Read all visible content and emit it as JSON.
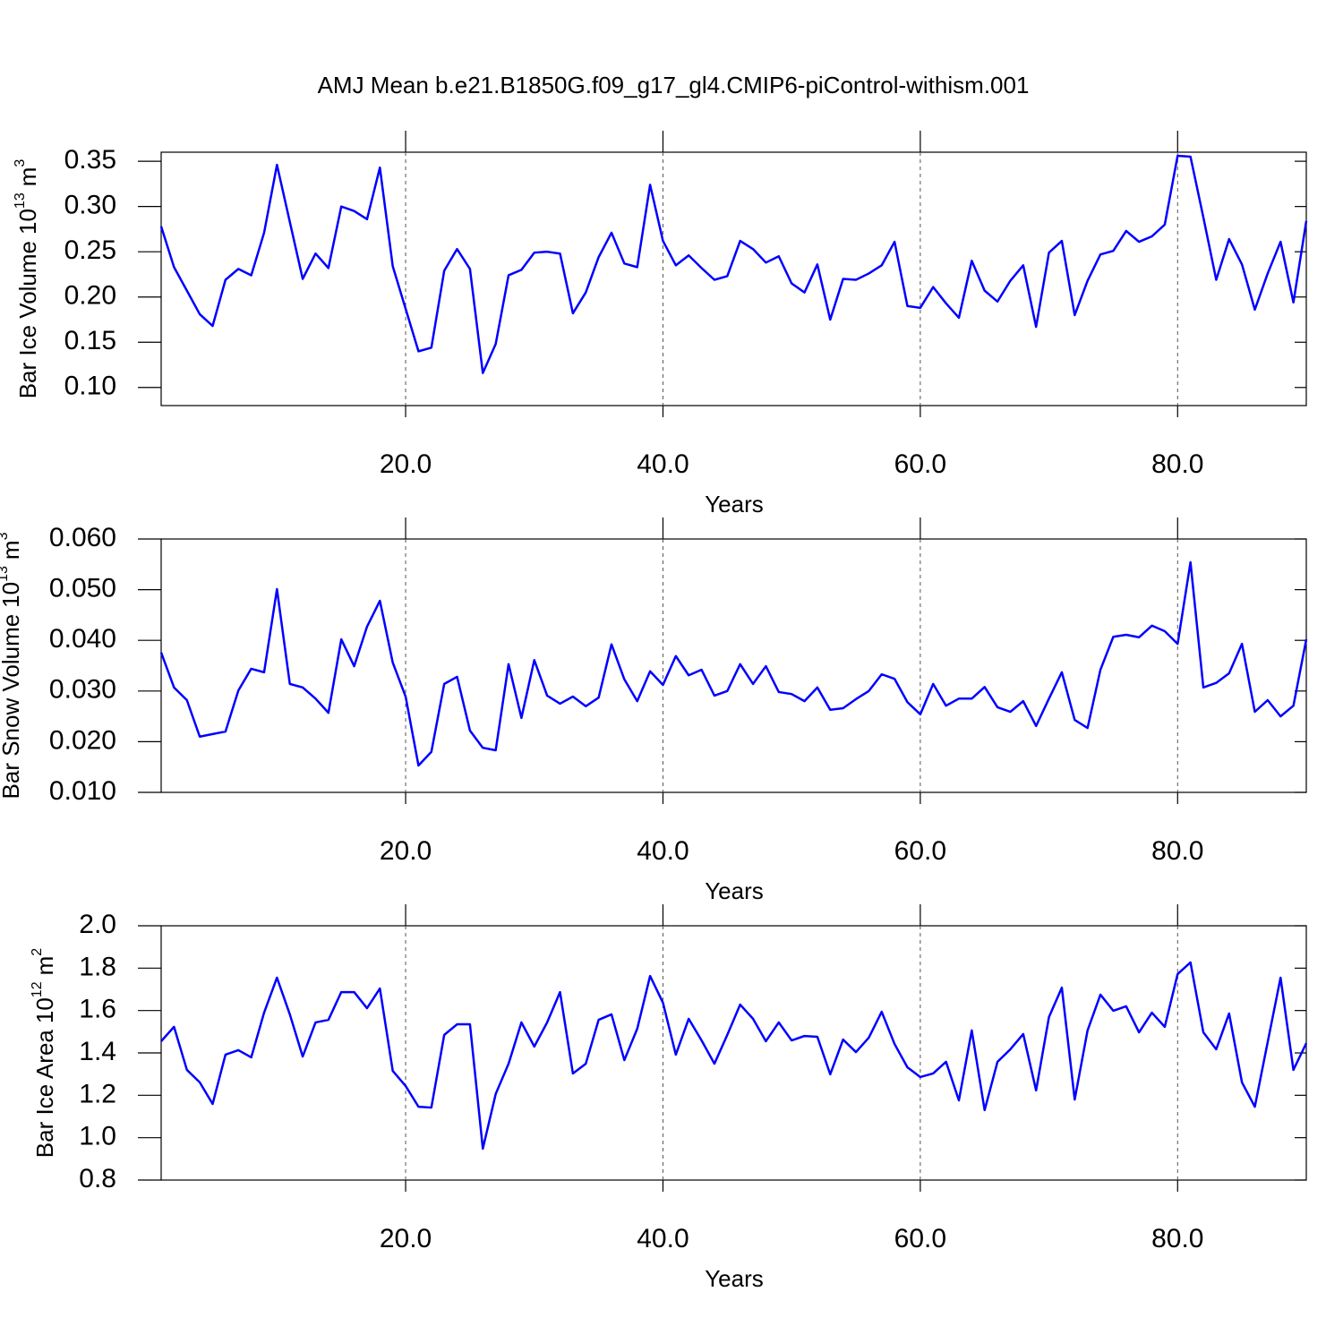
{
  "title": "AMJ Mean b.e21.B1850G.f09_g17_gl4.CMIP6-piControl-withism.001",
  "chart_data": [
    {
      "type": "line",
      "xlabel": "Years",
      "ylabel": {
        "text": "Bar Ice Volume",
        "base": "10",
        "exponent": "13",
        "unit": "m",
        "unit_exponent": "3"
      },
      "xlim": [
        1,
        90
      ],
      "xticks": [
        {
          "value": 20,
          "label": "20.0"
        },
        {
          "value": 40,
          "label": "40.0"
        },
        {
          "value": 60,
          "label": "60.0"
        },
        {
          "value": 80,
          "label": "80.0"
        }
      ],
      "ylim": [
        0.08,
        0.36
      ],
      "yticks": [
        0.35,
        {
          "value": 0.3,
          "label": "0.30"
        },
        0.25,
        {
          "value": 0.2,
          "label": "0.20"
        },
        0.15,
        {
          "value": 0.1,
          "label": "0.10"
        }
      ],
      "xgrid": true,
      "x": [
        1,
        2,
        3,
        4,
        5,
        6,
        7,
        8,
        9,
        10,
        11,
        12,
        13,
        14,
        15,
        16,
        17,
        18,
        19,
        20,
        21,
        22,
        23,
        24,
        25,
        26,
        27,
        28,
        29,
        30,
        31,
        32,
        33,
        34,
        35,
        36,
        37,
        38,
        39,
        40,
        41,
        42,
        43,
        44,
        45,
        46,
        47,
        48,
        49,
        50,
        51,
        52,
        53,
        54,
        55,
        56,
        57,
        58,
        59,
        60,
        61,
        62,
        63,
        64,
        65,
        66,
        67,
        68,
        69,
        70,
        71,
        72,
        73,
        74,
        75,
        76,
        77,
        78,
        79,
        80,
        81,
        82,
        83,
        84,
        85,
        86,
        87,
        88,
        89,
        90
      ],
      "series": [
        {
          "color": "#0000ff",
          "values": [
            0.278,
            0.233,
            0.207,
            0.181,
            0.168,
            0.219,
            0.231,
            0.224,
            0.271,
            0.346,
            0.283,
            0.22,
            0.248,
            0.232,
            0.3,
            0.295,
            0.286,
            0.343,
            0.234,
            0.187,
            0.14,
            0.144,
            0.229,
            0.253,
            0.231,
            0.116,
            0.148,
            0.224,
            0.23,
            0.249,
            0.25,
            0.248,
            0.182,
            0.205,
            0.244,
            0.271,
            0.237,
            0.233,
            0.324,
            0.262,
            0.235,
            0.246,
            0.232,
            0.219,
            0.223,
            0.262,
            0.253,
            0.238,
            0.245,
            0.215,
            0.205,
            0.236,
            0.175,
            0.22,
            0.219,
            0.226,
            0.235,
            0.261,
            0.19,
            0.188,
            0.211,
            0.193,
            0.177,
            0.24,
            0.207,
            0.195,
            0.218,
            0.235,
            0.167,
            0.249,
            0.262,
            0.18,
            0.218,
            0.247,
            0.251,
            0.273,
            0.261,
            0.267,
            0.28,
            0.356,
            0.355,
            0.288,
            0.219,
            0.264,
            0.236,
            0.186,
            0.226,
            0.261,
            0.194,
            0.284
          ]
        }
      ]
    },
    {
      "type": "line",
      "xlabel": "Years",
      "ylabel": {
        "text": "Bar Snow Volume",
        "base": "10",
        "exponent": "13",
        "unit": "m",
        "unit_exponent": "3"
      },
      "xlim": [
        1,
        90
      ],
      "xticks": [
        {
          "value": 20,
          "label": "20.0"
        },
        {
          "value": 40,
          "label": "40.0"
        },
        {
          "value": 60,
          "label": "60.0"
        },
        {
          "value": 80,
          "label": "80.0"
        }
      ],
      "ylim": [
        0.01,
        0.06
      ],
      "yticks": [
        {
          "value": 0.06,
          "label": "0.060"
        },
        {
          "value": 0.05,
          "label": "0.050"
        },
        {
          "value": 0.04,
          "label": "0.040"
        },
        {
          "value": 0.03,
          "label": "0.030"
        },
        {
          "value": 0.02,
          "label": "0.020"
        },
        {
          "value": 0.01,
          "label": "0.010"
        }
      ],
      "xgrid": true,
      "x": [
        1,
        2,
        3,
        4,
        5,
        6,
        7,
        8,
        9,
        10,
        11,
        12,
        13,
        14,
        15,
        16,
        17,
        18,
        19,
        20,
        21,
        22,
        23,
        24,
        25,
        26,
        27,
        28,
        29,
        30,
        31,
        32,
        33,
        34,
        35,
        36,
        37,
        38,
        39,
        40,
        41,
        42,
        43,
        44,
        45,
        46,
        47,
        48,
        49,
        50,
        51,
        52,
        53,
        54,
        55,
        56,
        57,
        58,
        59,
        60,
        61,
        62,
        63,
        64,
        65,
        66,
        67,
        68,
        69,
        70,
        71,
        72,
        73,
        74,
        75,
        76,
        77,
        78,
        79,
        80,
        81,
        82,
        83,
        84,
        85,
        86,
        87,
        88,
        89,
        90
      ],
      "series": [
        {
          "color": "#0000ff",
          "values": [
            0.0376,
            0.0307,
            0.0282,
            0.021,
            0.0215,
            0.022,
            0.0301,
            0.0344,
            0.0337,
            0.0501,
            0.0314,
            0.0307,
            0.0285,
            0.0257,
            0.0402,
            0.0349,
            0.0427,
            0.0478,
            0.0356,
            0.0289,
            0.0153,
            0.018,
            0.0314,
            0.0328,
            0.0222,
            0.0188,
            0.0183,
            0.0353,
            0.0247,
            0.0361,
            0.0291,
            0.0275,
            0.0289,
            0.027,
            0.0287,
            0.0392,
            0.0323,
            0.028,
            0.0339,
            0.0312,
            0.0369,
            0.0331,
            0.0342,
            0.0291,
            0.03,
            0.0353,
            0.0314,
            0.0349,
            0.0298,
            0.0294,
            0.028,
            0.0307,
            0.0263,
            0.0266,
            0.0284,
            0.03,
            0.0333,
            0.0324,
            0.0278,
            0.0254,
            0.0314,
            0.0271,
            0.0285,
            0.0285,
            0.0308,
            0.0268,
            0.0259,
            0.028,
            0.0231,
            0.0285,
            0.0337,
            0.0243,
            0.0227,
            0.0342,
            0.0407,
            0.0411,
            0.0406,
            0.0429,
            0.0418,
            0.0393,
            0.0554,
            0.0307,
            0.0316,
            0.0335,
            0.0393,
            0.0259,
            0.0282,
            0.025,
            0.0271,
            0.0402
          ]
        }
      ]
    },
    {
      "type": "line",
      "xlabel": "Years",
      "ylabel": {
        "text": "Bar Ice Area",
        "base": "10",
        "exponent": "12",
        "unit": "m",
        "unit_exponent": "2"
      },
      "xlim": [
        1,
        90
      ],
      "xticks": [
        {
          "value": 20,
          "label": "20.0"
        },
        {
          "value": 40,
          "label": "40.0"
        },
        {
          "value": 60,
          "label": "60.0"
        },
        {
          "value": 80,
          "label": "80.0"
        }
      ],
      "ylim": [
        0.8,
        2.0
      ],
      "yticks": [
        {
          "value": 2,
          "label": "2.0"
        },
        1.8,
        1.6,
        1.4,
        1.2,
        {
          "value": 1,
          "label": "1.0"
        },
        0.8
      ],
      "xgrid": true,
      "x": [
        1,
        2,
        3,
        4,
        5,
        6,
        7,
        8,
        9,
        10,
        11,
        12,
        13,
        14,
        15,
        16,
        17,
        18,
        19,
        20,
        21,
        22,
        23,
        24,
        25,
        26,
        27,
        28,
        29,
        30,
        31,
        32,
        33,
        34,
        35,
        36,
        37,
        38,
        39,
        40,
        41,
        42,
        43,
        44,
        45,
        46,
        47,
        48,
        49,
        50,
        51,
        52,
        53,
        54,
        55,
        56,
        57,
        58,
        59,
        60,
        61,
        62,
        63,
        64,
        65,
        66,
        67,
        68,
        69,
        70,
        71,
        72,
        73,
        74,
        75,
        76,
        77,
        78,
        79,
        80,
        81,
        82,
        83,
        84,
        85,
        86,
        87,
        88,
        89,
        90
      ],
      "series": [
        {
          "color": "#0000ff",
          "values": [
            1.455,
            1.523,
            1.32,
            1.261,
            1.159,
            1.392,
            1.413,
            1.379,
            1.59,
            1.755,
            1.582,
            1.383,
            1.544,
            1.556,
            1.687,
            1.687,
            1.611,
            1.704,
            1.315,
            1.244,
            1.146,
            1.142,
            1.485,
            1.535,
            1.535,
            0.948,
            1.206,
            1.349,
            1.544,
            1.43,
            1.544,
            1.687,
            1.303,
            1.349,
            1.556,
            1.582,
            1.366,
            1.514,
            1.763,
            1.637,
            1.392,
            1.561,
            1.459,
            1.349,
            1.485,
            1.628,
            1.561,
            1.455,
            1.544,
            1.459,
            1.48,
            1.476,
            1.299,
            1.463,
            1.404,
            1.472,
            1.594,
            1.442,
            1.332,
            1.286,
            1.303,
            1.358,
            1.176,
            1.506,
            1.13,
            1.358,
            1.417,
            1.489,
            1.223,
            1.569,
            1.708,
            1.18,
            1.506,
            1.675,
            1.599,
            1.62,
            1.497,
            1.59,
            1.523,
            1.772,
            1.827,
            1.497,
            1.417,
            1.586,
            1.261,
            1.146,
            1.451,
            1.755,
            1.32,
            1.446
          ]
        }
      ]
    }
  ]
}
